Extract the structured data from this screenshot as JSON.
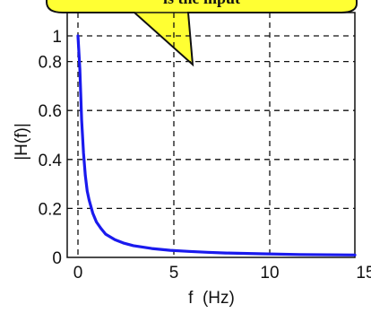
{
  "chart_data": {
    "type": "line",
    "xlabel": "f  (Hz)",
    "ylabel": "|H(f)|",
    "xlim": [
      0,
      15
    ],
    "ylim": [
      0,
      1
    ],
    "x_ticks": [
      "0",
      "5",
      "10",
      "15"
    ],
    "y_ticks": [
      "0",
      "0.2",
      "0.4",
      "0.6",
      "0.8",
      "1"
    ],
    "grid": true,
    "series": [
      {
        "color": "#1a1aee",
        "x": [
          0.0,
          0.1,
          0.2,
          0.3,
          0.4,
          0.5,
          0.6,
          0.8,
          1.0,
          1.25,
          1.5,
          2.0,
          2.5,
          3.0,
          4.0,
          5.0,
          6.0,
          7.0,
          8.0,
          10.0,
          12.0,
          15.0
        ],
        "y": [
          1.0,
          0.85,
          0.62,
          0.47,
          0.37,
          0.3,
          0.26,
          0.2,
          0.16,
          0.13,
          0.105,
          0.08,
          0.064,
          0.053,
          0.04,
          0.032,
          0.027,
          0.023,
          0.02,
          0.016,
          0.013,
          0.011
        ]
      }
    ]
  },
  "callout": {
    "fill": "#ffff33",
    "text": "is the input"
  }
}
